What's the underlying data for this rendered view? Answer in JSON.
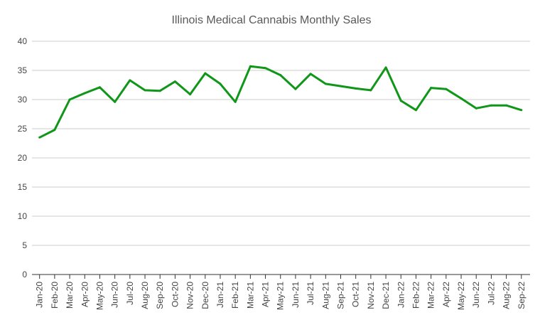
{
  "chart_data": {
    "type": "line",
    "title": "Illinois Medical Cannabis Monthly Sales",
    "xlabel": "",
    "ylabel": "",
    "ylim": [
      0,
      40
    ],
    "yticks": [
      0,
      5,
      10,
      15,
      20,
      25,
      30,
      35,
      40
    ],
    "grid": true,
    "legend": "none",
    "categories": [
      "Jan-20",
      "Feb-20",
      "Mar-20",
      "Apr-20",
      "May-20",
      "Jun-20",
      "Jul-20",
      "Aug-20",
      "Sep-20",
      "Oct-20",
      "Nov-20",
      "Dec-20",
      "Jan-21",
      "Feb-21",
      "Mar-21",
      "Apr-21",
      "May-21",
      "Jun-21",
      "Jul-21",
      "Aug-21",
      "Sep-21",
      "Oct-21",
      "Nov-21",
      "Dec-21",
      "Jan-22",
      "Feb-22",
      "Mar-22",
      "Apr-22",
      "May-22",
      "Jun-22",
      "Jul-22",
      "Aug-22",
      "Sep-22"
    ],
    "series": [
      {
        "name": "Sales",
        "color": "#109618",
        "values": [
          23.5,
          24.8,
          30.0,
          31.1,
          32.1,
          29.6,
          33.3,
          31.6,
          31.5,
          33.1,
          30.9,
          34.5,
          32.7,
          29.6,
          35.7,
          35.4,
          34.2,
          31.8,
          34.4,
          32.7,
          32.3,
          31.9,
          31.6,
          35.5,
          29.8,
          28.2,
          32.0,
          31.8,
          30.2,
          28.5,
          29.0,
          29.0,
          28.2
        ]
      }
    ]
  }
}
